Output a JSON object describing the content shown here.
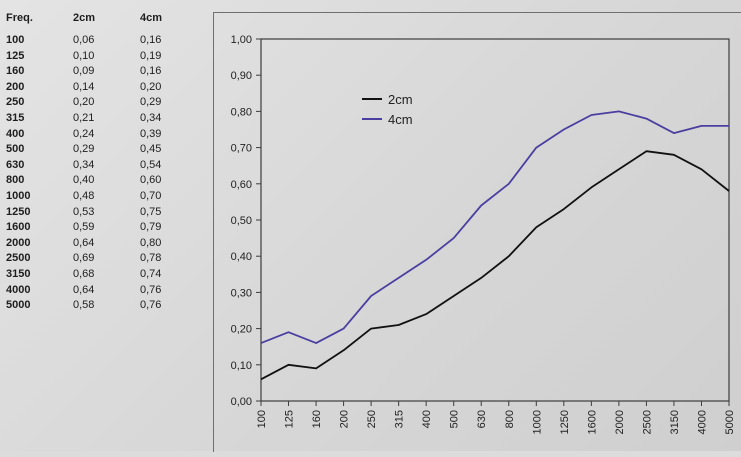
{
  "table": {
    "headers": [
      "Freq.",
      "2cm",
      "4cm"
    ],
    "rows": [
      [
        "100",
        "0,06",
        "0,16"
      ],
      [
        "125",
        "0,10",
        "0,19"
      ],
      [
        "160",
        "0,09",
        "0,16"
      ],
      [
        "200",
        "0,14",
        "0,20"
      ],
      [
        "250",
        "0,20",
        "0,29"
      ],
      [
        "315",
        "0,21",
        "0,34"
      ],
      [
        "400",
        "0,24",
        "0,39"
      ],
      [
        "500",
        "0,29",
        "0,45"
      ],
      [
        "630",
        "0,34",
        "0,54"
      ],
      [
        "800",
        "0,40",
        "0,60"
      ],
      [
        "1000",
        "0,48",
        "0,70"
      ],
      [
        "1250",
        "0,53",
        "0,75"
      ],
      [
        "1600",
        "0,59",
        "0,79"
      ],
      [
        "2000",
        "0,64",
        "0,80"
      ],
      [
        "2500",
        "0,69",
        "0,78"
      ],
      [
        "3150",
        "0,68",
        "0,74"
      ],
      [
        "4000",
        "0,64",
        "0,76"
      ],
      [
        "5000",
        "0,58",
        "0,76"
      ]
    ]
  },
  "chart_data": {
    "type": "line",
    "title": "",
    "xlabel": "",
    "ylabel": "",
    "categories": [
      "100",
      "125",
      "160",
      "200",
      "250",
      "315",
      "400",
      "500",
      "630",
      "800",
      "1000",
      "1250",
      "1600",
      "2000",
      "2500",
      "3150",
      "4000",
      "5000"
    ],
    "ylim": [
      0,
      1
    ],
    "yticks": [
      "0,00",
      "0,10",
      "0,20",
      "0,30",
      "0,40",
      "0,50",
      "0,60",
      "0,70",
      "0,80",
      "0,90",
      "1,00"
    ],
    "grid": false,
    "legend_position": "top-center",
    "series": [
      {
        "name": "2cm",
        "color": "#111111",
        "values": [
          0.06,
          0.1,
          0.09,
          0.14,
          0.2,
          0.21,
          0.24,
          0.29,
          0.34,
          0.4,
          0.48,
          0.53,
          0.59,
          0.64,
          0.69,
          0.68,
          0.64,
          0.58
        ]
      },
      {
        "name": "4cm",
        "color": "#4a3fa0",
        "values": [
          0.16,
          0.19,
          0.16,
          0.2,
          0.29,
          0.34,
          0.39,
          0.45,
          0.54,
          0.6,
          0.7,
          0.75,
          0.79,
          0.8,
          0.78,
          0.74,
          0.76,
          0.76
        ]
      }
    ]
  }
}
